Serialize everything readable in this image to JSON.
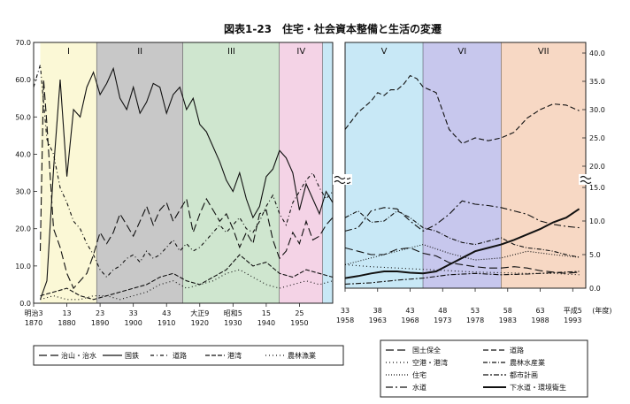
{
  "chart_data": [
    {
      "type": "line",
      "title": "図表1-23　住宅・社会資本整備と生活の変遷",
      "ylim": [
        0,
        70
      ],
      "yticks": [
        "0.0",
        "10.0",
        "20.0",
        "30.0",
        "40.0",
        "50.0",
        "60.0",
        "70.0"
      ],
      "xlim": [
        1870,
        1960
      ],
      "xtick_positions": [
        1870,
        1880,
        1890,
        1900,
        1910,
        1920,
        1930,
        1940,
        1950
      ],
      "xticks_era": [
        "明治3",
        "13",
        "23",
        "33",
        "43",
        "大正9",
        "昭和5",
        "15",
        "25"
      ],
      "xticks_year": [
        "1870",
        "1880",
        "1890",
        "1900",
        "1910",
        "1920",
        "1930",
        "1940",
        "1950"
      ],
      "periods": [
        {
          "label": "I",
          "from": 1872,
          "to": 1889,
          "color": "#fbf8d6"
        },
        {
          "label": "II",
          "from": 1889,
          "to": 1915,
          "color": "#c8c8c8"
        },
        {
          "label": "III",
          "from": 1915,
          "to": 1944,
          "color": "#cfe6cf"
        },
        {
          "label": "IV",
          "from": 1944,
          "to": 1957,
          "color": "#f4d3e6"
        },
        {
          "label": "",
          "from": 1957,
          "to": 1960,
          "color": "#c8e8f6"
        }
      ],
      "series": [
        {
          "name": "国鉄",
          "dash": "",
          "x": [
            1872,
            1874,
            1876,
            1878,
            1880,
            1882,
            1884,
            1886,
            1888,
            1890,
            1892,
            1894,
            1896,
            1898,
            1900,
            1902,
            1904,
            1906,
            1908,
            1910,
            1912,
            1914,
            1916,
            1918,
            1920,
            1922,
            1924,
            1926,
            1928,
            1930,
            1932,
            1934,
            1936,
            1938,
            1940,
            1942,
            1944,
            1946,
            1948,
            1950,
            1952,
            1954,
            1956,
            1958,
            1960
          ],
          "values": [
            1,
            6,
            36,
            60,
            34,
            52,
            50,
            58,
            62,
            56,
            59,
            63,
            55,
            52,
            58,
            51,
            54,
            59,
            58,
            51,
            56,
            58,
            52,
            55,
            48,
            46,
            42,
            38,
            33,
            30,
            35,
            28,
            23,
            26,
            34,
            36,
            41,
            39,
            35,
            25,
            32,
            28,
            24,
            30,
            27
          ]
        },
        {
          "name": "治山・治水",
          "dash": "9,4",
          "x": [
            1872,
            1873,
            1874,
            1876,
            1878,
            1880,
            1882,
            1884,
            1886,
            1888,
            1890,
            1892,
            1894,
            1896,
            1898,
            1900,
            1902,
            1904,
            1906,
            1908,
            1910,
            1912,
            1914,
            1916,
            1918,
            1920,
            1922,
            1924,
            1926,
            1928,
            1930,
            1932,
            1934,
            1936,
            1938,
            1940,
            1942,
            1944,
            1946,
            1948,
            1950,
            1952,
            1954,
            1956,
            1958,
            1960
          ],
          "values": [
            14,
            60,
            48,
            20,
            15,
            8,
            4,
            6,
            8,
            13,
            19,
            16,
            19,
            24,
            21,
            18,
            22,
            26,
            21,
            25,
            27,
            22,
            25,
            28,
            19,
            24,
            28,
            25,
            22,
            24,
            20,
            15,
            19,
            16,
            24,
            25,
            17,
            12,
            14,
            19,
            16,
            22,
            17,
            18,
            21,
            23
          ]
        },
        {
          "name": "道路",
          "dash": "4,3,1,3",
          "x": [
            1870,
            1872,
            1874,
            1876,
            1878,
            1880,
            1882,
            1884,
            1886,
            1888,
            1890,
            1892,
            1894,
            1896,
            1898,
            1900,
            1902,
            1904,
            1906,
            1908,
            1910,
            1912,
            1914,
            1916,
            1918,
            1920,
            1922,
            1924,
            1926,
            1928,
            1930,
            1932,
            1934,
            1936,
            1938,
            1940,
            1942,
            1944,
            1946,
            1948,
            1950,
            1952,
            1954,
            1956,
            1958,
            1960
          ],
          "values": [
            58,
            64,
            44,
            40,
            31,
            27,
            22,
            20,
            16,
            13,
            9,
            7,
            9,
            10,
            12,
            13,
            11,
            14,
            12,
            13,
            15,
            17,
            14,
            16,
            14,
            15,
            17,
            19,
            21,
            19,
            21,
            23,
            20,
            19,
            22,
            26,
            29,
            24,
            21,
            27,
            30,
            33,
            35,
            31,
            28,
            30
          ]
        },
        {
          "name": "港湾",
          "dash": "5,2",
          "x": [
            1872,
            1876,
            1880,
            1884,
            1888,
            1892,
            1896,
            1900,
            1904,
            1908,
            1912,
            1916,
            1920,
            1924,
            1928,
            1932,
            1936,
            1940,
            1944,
            1948,
            1952,
            1956,
            1960
          ],
          "values": [
            2,
            3,
            4,
            2,
            1,
            2,
            3,
            4,
            5,
            7,
            8,
            6,
            5,
            7,
            9,
            13,
            10,
            11,
            8,
            7,
            9,
            8,
            7
          ]
        },
        {
          "name": "農林漁業",
          "dash": "1,3",
          "x": [
            1872,
            1876,
            1880,
            1884,
            1888,
            1892,
            1896,
            1900,
            1904,
            1908,
            1912,
            1916,
            1920,
            1924,
            1928,
            1932,
            1936,
            1940,
            1944,
            1948,
            1952,
            1956,
            1960
          ],
          "values": [
            1,
            2,
            1,
            1,
            2,
            2,
            1,
            2,
            3,
            5,
            6,
            4,
            5,
            6,
            8,
            9,
            7,
            5,
            4,
            5,
            6,
            5,
            6
          ]
        }
      ],
      "legend": [
        "治山・治水",
        "国鉄",
        "道路",
        "港湾",
        "農林漁業"
      ]
    },
    {
      "type": "line",
      "ylim_upper": [
        20,
        40
      ],
      "ylim_lower": [
        0,
        15
      ],
      "yticks_upper": [
        "40.0",
        "35.0",
        "30.0",
        "25.0",
        "20.0"
      ],
      "yticks_lower": [
        "15.0",
        "10.0",
        "5.0",
        "0.0"
      ],
      "xlim": [
        1958,
        1995
      ],
      "xtick_positions": [
        1958,
        1963,
        1968,
        1973,
        1978,
        1983,
        1988,
        1993
      ],
      "xticks_era": [
        "33",
        "38",
        "43",
        "48",
        "53",
        "58",
        "63",
        "平成5"
      ],
      "xticks_year": [
        "1958",
        "1963",
        "1968",
        "1973",
        "1978",
        "1983",
        "1988",
        "1993"
      ],
      "x_unit": "(年度)",
      "periods": [
        {
          "label": "V",
          "from": 1958,
          "to": 1970,
          "color": "#c8e8f6"
        },
        {
          "label": "VI",
          "from": 1970,
          "to": 1982,
          "color": "#c7c7ed"
        },
        {
          "label": "VII",
          "from": 1982,
          "to": 1995,
          "color": "#f7d8c4"
        }
      ],
      "series": [
        {
          "name": "国土保全",
          "dash": "9,4",
          "x": [
            1958,
            1960,
            1962,
            1964,
            1966,
            1968,
            1970,
            1972,
            1974,
            1976,
            1978,
            1980,
            1982,
            1984,
            1986,
            1988,
            1990,
            1992,
            1994
          ],
          "values": [
            6.0,
            5.5,
            5.0,
            5.0,
            5.8,
            6.0,
            5.2,
            4.8,
            3.8,
            3.5,
            3.2,
            3.0,
            3.0,
            3.2,
            3.0,
            2.6,
            2.4,
            2.2,
            2.4
          ]
        },
        {
          "name": "道路",
          "dash": "6,3",
          "x": [
            1958,
            1960,
            1962,
            1963,
            1964,
            1965,
            1966,
            1967,
            1968,
            1969,
            1970,
            1972,
            1974,
            1976,
            1978,
            1980,
            1982,
            1984,
            1986,
            1988,
            1990,
            1992,
            1994
          ],
          "values": [
            26.5,
            29.5,
            31.5,
            33.0,
            32.5,
            33.5,
            33.5,
            34.5,
            36.0,
            35.5,
            34.0,
            33.0,
            26.5,
            24.0,
            25.0,
            24.5,
            25.0,
            26.0,
            28.5,
            30.0,
            31.0,
            30.8,
            29.8
          ]
        },
        {
          "name": "空港・港湾",
          "dash": "1,3",
          "x": [
            1958,
            1962,
            1966,
            1970,
            1974,
            1978,
            1982,
            1986,
            1990,
            1994
          ],
          "values": [
            3.5,
            3.2,
            3.0,
            2.8,
            2.6,
            2.4,
            2.3,
            2.2,
            2.2,
            2.0
          ]
        },
        {
          "name": "農林水産業",
          "dash": "5,2,1,2",
          "x": [
            1958,
            1960,
            1962,
            1964,
            1966,
            1968,
            1970,
            1972,
            1974,
            1976,
            1978,
            1980,
            1982,
            1984,
            1986,
            1988,
            1990,
            1992,
            1994
          ],
          "values": [
            10.5,
            11.5,
            9.8,
            10.0,
            11.5,
            10.5,
            9.0,
            8.5,
            7.5,
            6.8,
            6.5,
            7.0,
            7.5,
            6.5,
            6.0,
            5.8,
            5.5,
            5.0,
            4.6
          ]
        },
        {
          "name": "住宅",
          "dash": "1,2",
          "x": [
            1958,
            1962,
            1966,
            1970,
            1974,
            1978,
            1982,
            1986,
            1990,
            1994
          ],
          "values": [
            3.5,
            4.5,
            5.5,
            6.5,
            5.2,
            4.2,
            4.5,
            5.5,
            5.0,
            4.6
          ]
        },
        {
          "name": "都市計画",
          "dash": "6,2,2,2",
          "x": [
            1958,
            1962,
            1966,
            1970,
            1974,
            1978,
            1982,
            1986,
            1990,
            1994
          ],
          "values": [
            0.6,
            0.8,
            1.2,
            1.5,
            2.0,
            2.2,
            2.0,
            2.1,
            2.3,
            2.5
          ]
        },
        {
          "name": "水道",
          "dash": "8,3,2,3",
          "x": [
            1958,
            1960,
            1962,
            1964,
            1966,
            1968,
            1970,
            1972,
            1974,
            1976,
            1978,
            1980,
            1982,
            1984,
            1986,
            1988,
            1990,
            1992,
            1994
          ],
          "values": [
            8.5,
            9.0,
            11.5,
            12.0,
            11.8,
            10.0,
            8.5,
            9.5,
            11.0,
            13.0,
            12.5,
            12.3,
            12.0,
            11.5,
            11.0,
            10.0,
            9.5,
            9.2,
            9.0
          ]
        },
        {
          "name": "下水道・環境衛生",
          "dash": "",
          "bold": true,
          "x": [
            1958,
            1960,
            1962,
            1964,
            1966,
            1968,
            1970,
            1972,
            1974,
            1976,
            1978,
            1980,
            1982,
            1984,
            1986,
            1988,
            1990,
            1992,
            1994
          ],
          "values": [
            1.5,
            1.8,
            2.2,
            2.5,
            2.5,
            2.3,
            2.2,
            2.5,
            3.5,
            4.5,
            5.5,
            6.0,
            6.5,
            7.2,
            8.0,
            8.8,
            9.8,
            10.5,
            11.8
          ]
        }
      ],
      "legend": [
        "国土保全",
        "道路",
        "空港・港湾",
        "農林水産業",
        "住宅",
        "都市計画",
        "水道",
        "下水道・環境衛生"
      ]
    }
  ]
}
